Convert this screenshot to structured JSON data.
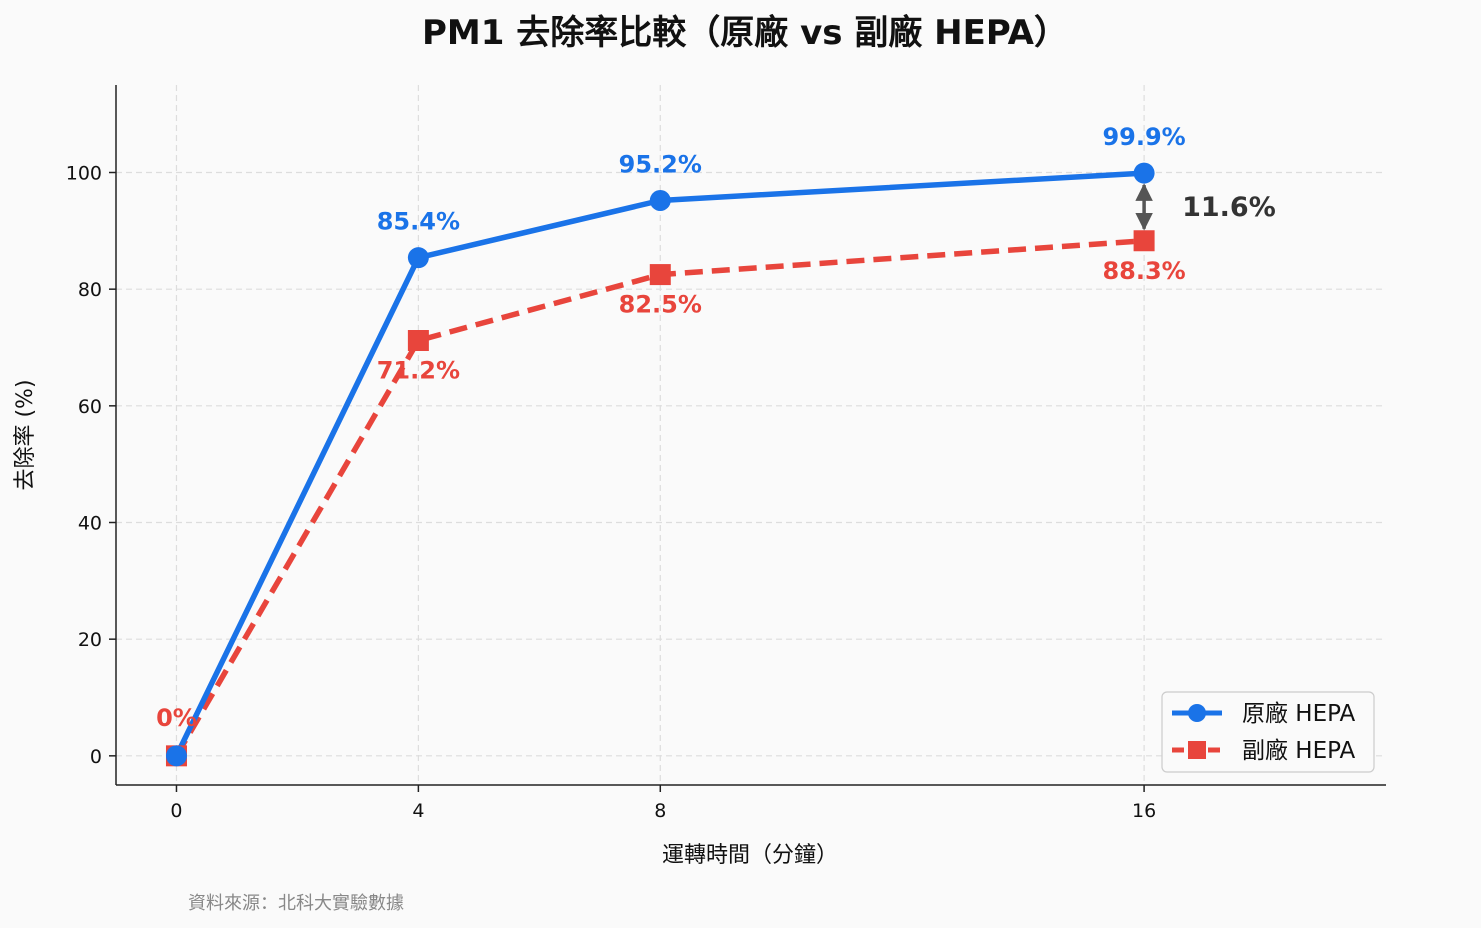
{
  "chart_data": {
    "type": "line",
    "title": "PM1 去除率比較（原廠 vs 副廠 HEPA）",
    "xlabel": "運轉時間（分鐘）",
    "ylabel": "去除率 (%)",
    "x": [
      0,
      4,
      8,
      16
    ],
    "x_ticks": [
      "0",
      "4",
      "8",
      "16"
    ],
    "y_ticks": [
      "0",
      "20",
      "40",
      "60",
      "80",
      "100"
    ],
    "xlim": [
      -1,
      20
    ],
    "ylim": [
      -5,
      115
    ],
    "grid": true,
    "legend_position": "bottom-right",
    "series": [
      {
        "name": "原廠 HEPA",
        "values": [
          0,
          85.4,
          95.2,
          99.9
        ],
        "labels": [
          "",
          "85.4%",
          "95.2%",
          "99.9%"
        ],
        "color": "#1a73e8",
        "marker": "circle",
        "line_style": "solid"
      },
      {
        "name": "副廠 HEPA",
        "values": [
          0,
          71.2,
          82.5,
          88.3
        ],
        "labels": [
          "0%",
          "71.2%",
          "82.5%",
          "88.3%"
        ],
        "color": "#e8453c",
        "marker": "square",
        "line_style": "dashed"
      }
    ],
    "annotation": {
      "text": "11.6%",
      "x": 16,
      "from": 99.9,
      "to": 88.3,
      "color": "#555555"
    },
    "source_note": "資料來源：北科大實驗數據"
  }
}
